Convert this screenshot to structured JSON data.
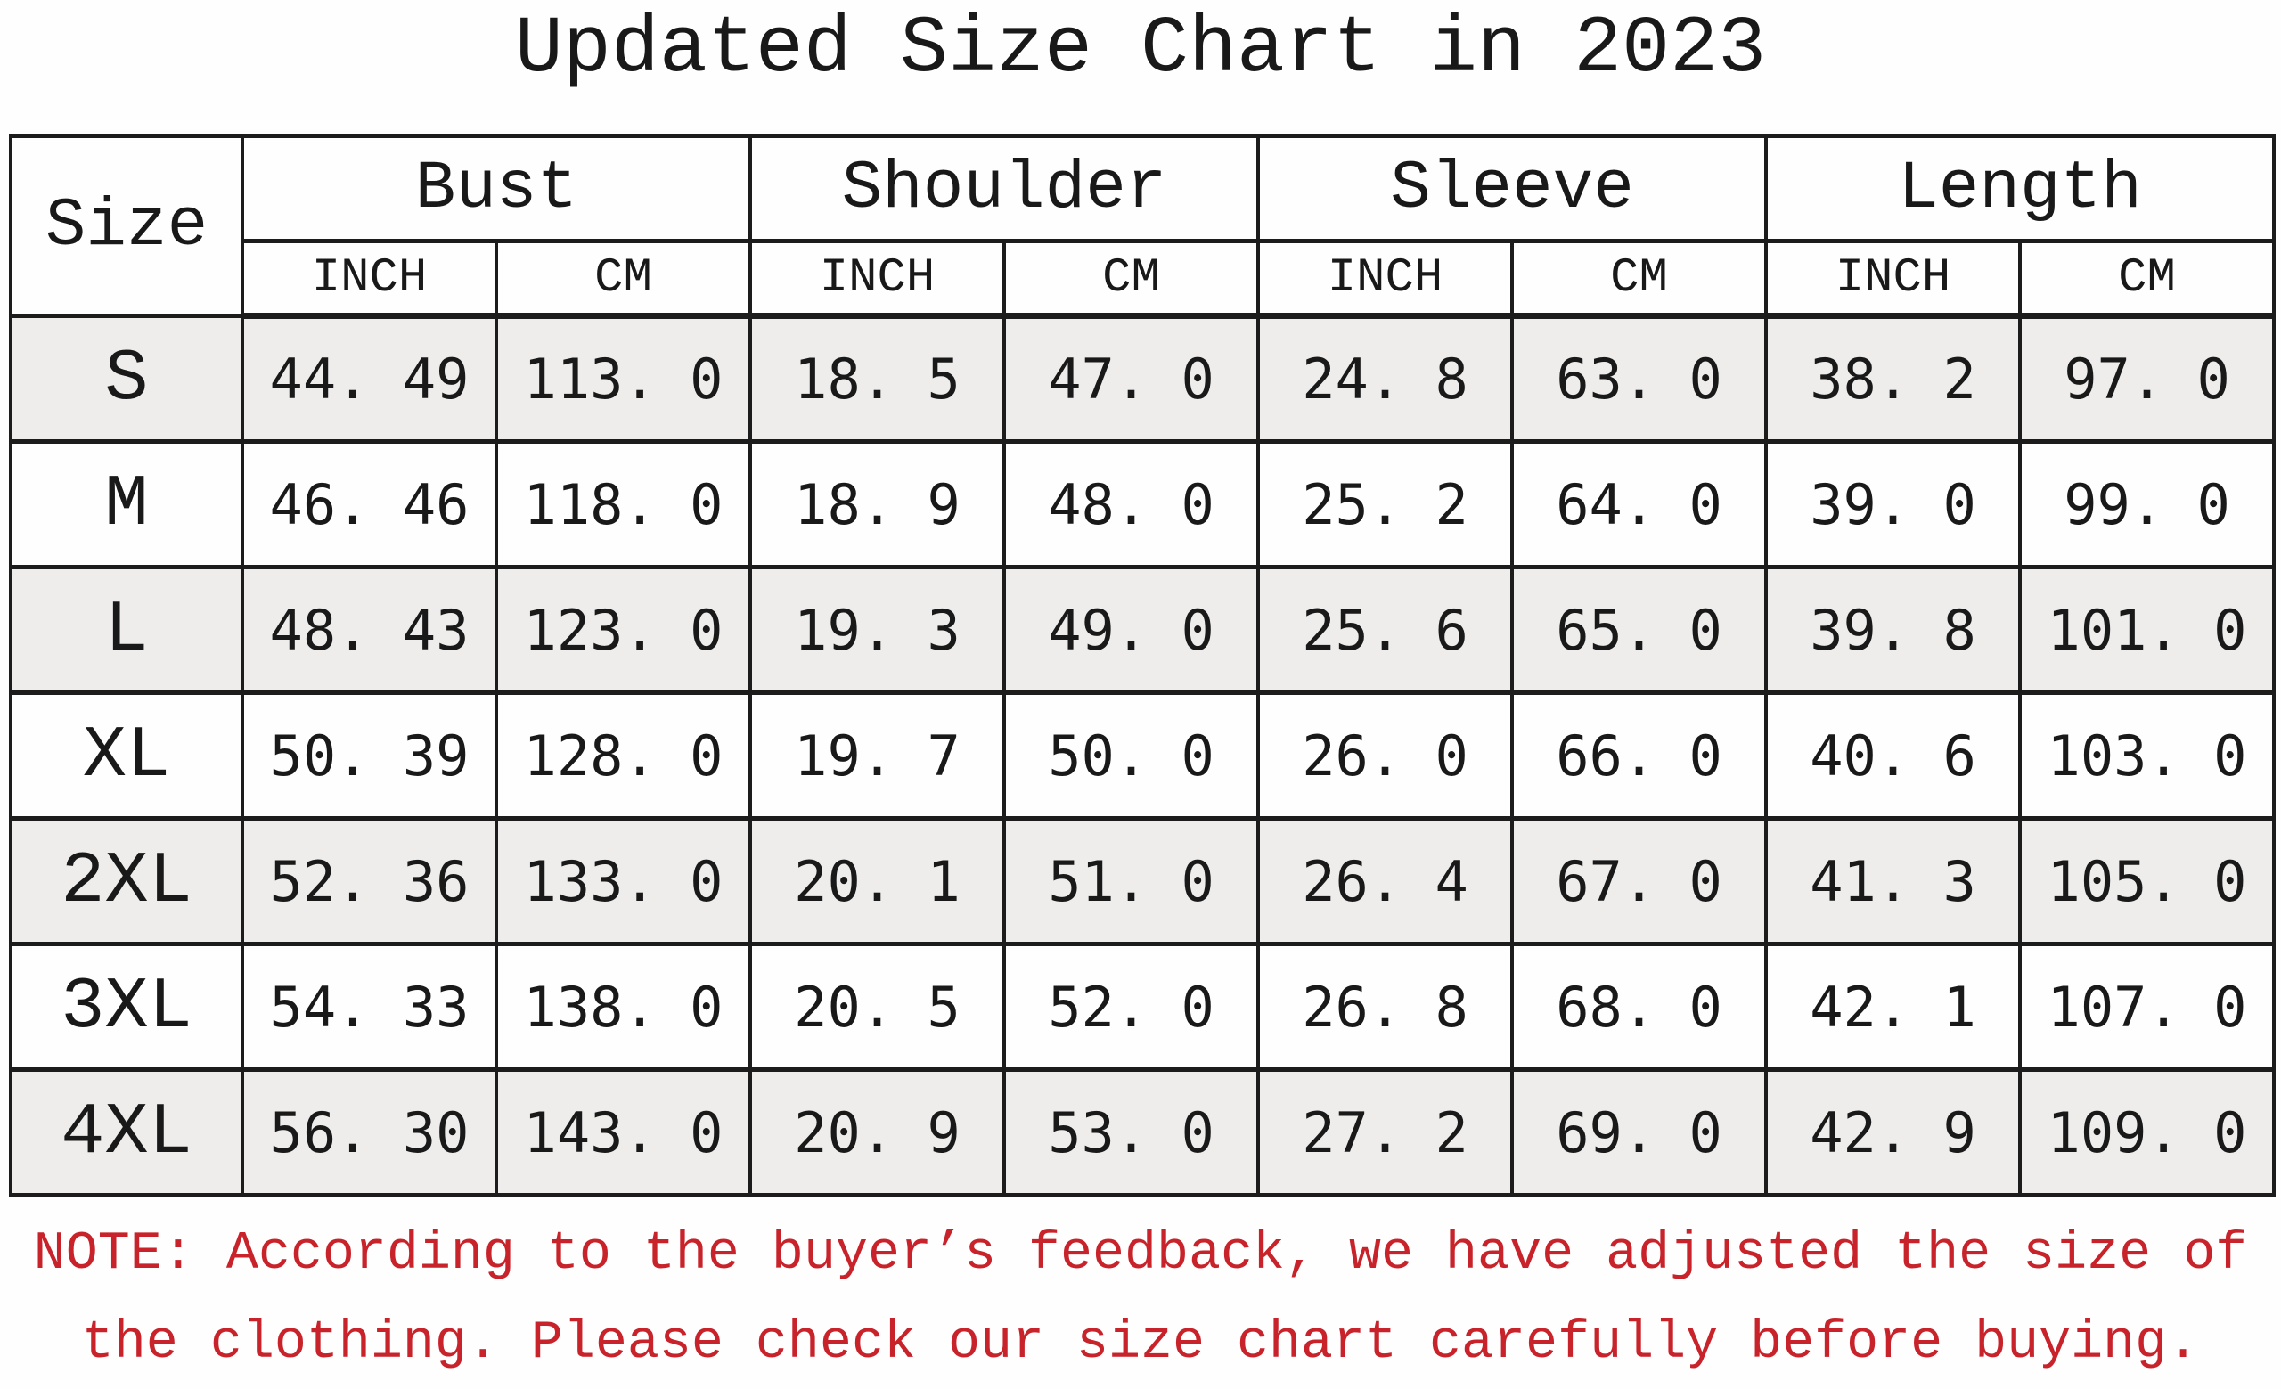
{
  "title": "Updated Size Chart in 2023",
  "table": {
    "corner_label": "Size",
    "groups": [
      {
        "label": "Bust"
      },
      {
        "label": "Shoulder"
      },
      {
        "label": "Sleeve"
      },
      {
        "label": "Length"
      }
    ],
    "unit_labels": [
      "INCH",
      "CM",
      "INCH",
      "CM",
      "INCH",
      "CM",
      "INCH",
      "CM"
    ],
    "rows": [
      {
        "size": "S",
        "values": [
          "44. 49",
          "113. 0",
          "18. 5",
          "47. 0",
          "24. 8",
          "63. 0",
          "38. 2",
          "97. 0"
        ],
        "shaded": true
      },
      {
        "size": "M",
        "values": [
          "46. 46",
          "118. 0",
          "18. 9",
          "48. 0",
          "25. 2",
          "64. 0",
          "39. 0",
          "99. 0"
        ],
        "shaded": false
      },
      {
        "size": "L",
        "values": [
          "48. 43",
          "123. 0",
          "19. 3",
          "49. 0",
          "25. 6",
          "65. 0",
          "39. 8",
          "101. 0"
        ],
        "shaded": true
      },
      {
        "size": "XL",
        "values": [
          "50. 39",
          "128. 0",
          "19. 7",
          "50. 0",
          "26. 0",
          "66. 0",
          "40. 6",
          "103. 0"
        ],
        "shaded": false
      },
      {
        "size": "2XL",
        "values": [
          "52. 36",
          "133. 0",
          "20. 1",
          "51. 0",
          "26. 4",
          "67. 0",
          "41. 3",
          "105. 0"
        ],
        "shaded": true
      },
      {
        "size": "3XL",
        "values": [
          "54. 33",
          "138. 0",
          "20. 5",
          "52. 0",
          "26. 8",
          "68. 0",
          "42. 1",
          "107. 0"
        ],
        "shaded": false
      },
      {
        "size": "4XL",
        "values": [
          "56. 30",
          "143. 0",
          "20. 9",
          "53. 0",
          "27. 2",
          "69. 0",
          "42. 9",
          "109. 0"
        ],
        "shaded": true
      }
    ]
  },
  "note": {
    "line1": "NOTE: According to the buyer’s feedback, we have adjusted the size of",
    "line2": "the clothing. Please check our size chart carefully before buying."
  },
  "colors": {
    "note_red": "#c8232a",
    "row_shade": "#eeedec",
    "border": "#1c1c1c",
    "text": "#191919",
    "background": "#fefefe"
  },
  "chart_data": {
    "type": "table",
    "title": "Updated Size Chart in 2023",
    "columns": [
      "Size",
      "Bust INCH",
      "Bust CM",
      "Shoulder INCH",
      "Shoulder CM",
      "Sleeve INCH",
      "Sleeve CM",
      "Length INCH",
      "Length CM"
    ],
    "rows": [
      [
        "S",
        44.49,
        113.0,
        18.5,
        47.0,
        24.8,
        63.0,
        38.2,
        97.0
      ],
      [
        "M",
        46.46,
        118.0,
        18.9,
        48.0,
        25.2,
        64.0,
        39.0,
        99.0
      ],
      [
        "L",
        48.43,
        123.0,
        19.3,
        49.0,
        25.6,
        65.0,
        39.8,
        101.0
      ],
      [
        "XL",
        50.39,
        128.0,
        19.7,
        50.0,
        26.0,
        66.0,
        40.6,
        103.0
      ],
      [
        "2XL",
        52.36,
        133.0,
        20.1,
        51.0,
        26.4,
        67.0,
        41.3,
        105.0
      ],
      [
        "3XL",
        54.33,
        138.0,
        20.5,
        52.0,
        26.8,
        68.0,
        42.1,
        107.0
      ],
      [
        "4XL",
        56.3,
        143.0,
        20.9,
        53.0,
        27.2,
        69.0,
        42.9,
        109.0
      ]
    ],
    "note": "NOTE: According to the buyer’s feedback, we have adjusted the size of the clothing. Please check our size chart carefully before buying."
  }
}
